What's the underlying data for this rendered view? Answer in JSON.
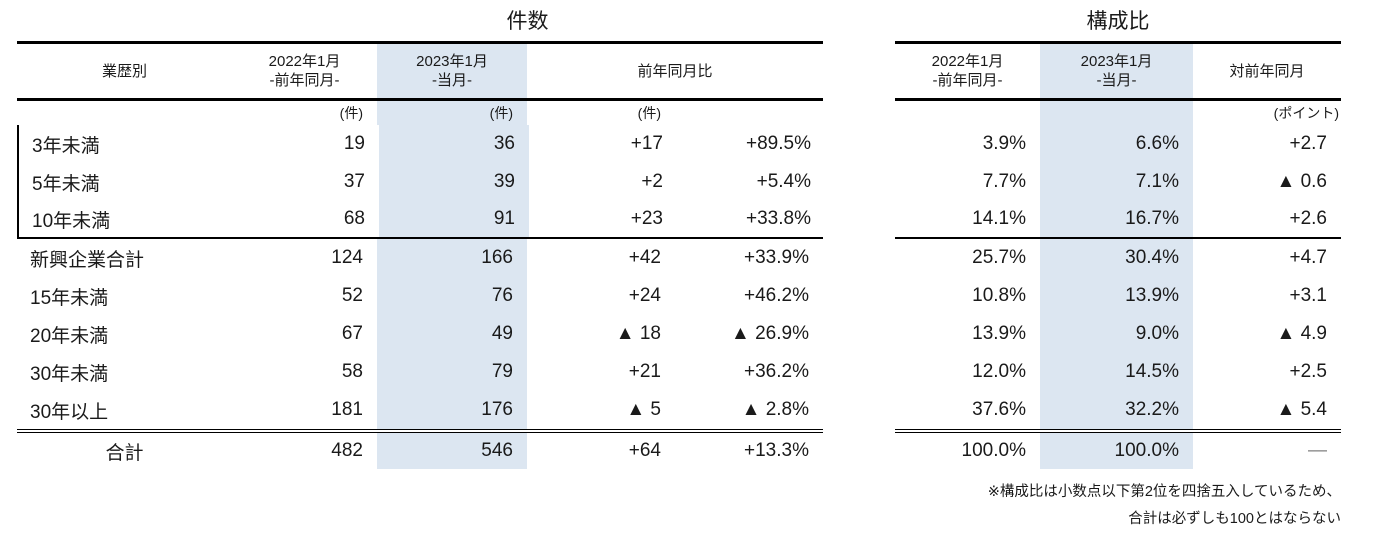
{
  "left_table": {
    "title": "件数",
    "header": {
      "col_label": "業歴別",
      "col_2022_l1": "2022年1月",
      "col_2022_l2": "-前年同月-",
      "col_2023_l1": "2023年1月",
      "col_2023_l2": "-当月-",
      "col_yoy": "前年同月比"
    },
    "units": {
      "c2022": "(件)",
      "c2023": "(件)",
      "diff": "(件)"
    },
    "rows": [
      {
        "label": "3年未満",
        "v2022": "19",
        "v2023": "36",
        "diff": "+17",
        "pct": "+89.5%"
      },
      {
        "label": "5年未満",
        "v2022": "37",
        "v2023": "39",
        "diff": "+2",
        "pct": "+5.4%"
      },
      {
        "label": "10年未満",
        "v2022": "68",
        "v2023": "91",
        "diff": "+23",
        "pct": "+33.8%"
      },
      {
        "label": "新興企業合計",
        "v2022": "124",
        "v2023": "166",
        "diff": "+42",
        "pct": "+33.9%"
      },
      {
        "label": "15年未満",
        "v2022": "52",
        "v2023": "76",
        "diff": "+24",
        "pct": "+46.2%"
      },
      {
        "label": "20年未満",
        "v2022": "67",
        "v2023": "49",
        "diff": "▲ 18",
        "pct": "▲ 26.9%"
      },
      {
        "label": "30年未満",
        "v2022": "58",
        "v2023": "79",
        "diff": "+21",
        "pct": "+36.2%"
      },
      {
        "label": "30年以上",
        "v2022": "181",
        "v2023": "176",
        "diff": "▲ 5",
        "pct": "▲ 2.8%"
      }
    ],
    "total": {
      "label": "合計",
      "v2022": "482",
      "v2023": "546",
      "diff": "+64",
      "pct": "+13.3%"
    }
  },
  "right_table": {
    "title": "構成比",
    "header": {
      "col_2022_l1": "2022年1月",
      "col_2022_l2": "-前年同月-",
      "col_2023_l1": "2023年1月",
      "col_2023_l2": "-当月-",
      "col_change": "対前年同月"
    },
    "units": {
      "change": "(ポイント)"
    },
    "rows": [
      {
        "v2022": "3.9%",
        "v2023": "6.6%",
        "change": "+2.7"
      },
      {
        "v2022": "7.7%",
        "v2023": "7.1%",
        "change": "▲ 0.6"
      },
      {
        "v2022": "14.1%",
        "v2023": "16.7%",
        "change": "+2.6"
      },
      {
        "v2022": "25.7%",
        "v2023": "30.4%",
        "change": "+4.7"
      },
      {
        "v2022": "10.8%",
        "v2023": "13.9%",
        "change": "+3.1"
      },
      {
        "v2022": "13.9%",
        "v2023": "9.0%",
        "change": "▲ 4.9"
      },
      {
        "v2022": "12.0%",
        "v2023": "14.5%",
        "change": "+2.5"
      },
      {
        "v2022": "37.6%",
        "v2023": "32.2%",
        "change": "▲ 5.4"
      }
    ],
    "total": {
      "v2022": "100.0%",
      "v2023": "100.0%",
      "change": "―"
    }
  },
  "footnote": {
    "line1": "※構成比は小数点以下第2位を四捨五入しているため、",
    "line2": "合計は必ずしも100とはならない"
  },
  "colors": {
    "highlight": "#dce6f1",
    "rule": "#000000",
    "text": "#1a1a1a",
    "dash": "#808080"
  },
  "chart_data": [
    {
      "type": "table",
      "title": "件数",
      "columns": [
        "業歴別",
        "2022年1月 -前年同月- (件)",
        "2023年1月 -当月- (件)",
        "前年同月比 (件)",
        "前年同月比 (%)"
      ],
      "rows": [
        [
          "3年未満",
          19,
          36,
          "+17",
          "+89.5%"
        ],
        [
          "5年未満",
          37,
          39,
          "+2",
          "+5.4%"
        ],
        [
          "10年未満",
          68,
          91,
          "+23",
          "+33.8%"
        ],
        [
          "新興企業合計",
          124,
          166,
          "+42",
          "+33.9%"
        ],
        [
          "15年未満",
          52,
          76,
          "+24",
          "+46.2%"
        ],
        [
          "20年未満",
          67,
          49,
          "▲ 18",
          "▲ 26.9%"
        ],
        [
          "30年未満",
          58,
          79,
          "+21",
          "+36.2%"
        ],
        [
          "30年以上",
          181,
          176,
          "▲ 5",
          "▲ 2.8%"
        ],
        [
          "合計",
          482,
          546,
          "+64",
          "+13.3%"
        ]
      ]
    },
    {
      "type": "table",
      "title": "構成比",
      "columns": [
        "業歴別",
        "2022年1月 -前年同月-",
        "2023年1月 -当月-",
        "対前年同月 (ポイント)"
      ],
      "rows": [
        [
          "3年未満",
          "3.9%",
          "6.6%",
          "+2.7"
        ],
        [
          "5年未満",
          "7.7%",
          "7.1%",
          "▲ 0.6"
        ],
        [
          "10年未満",
          "14.1%",
          "16.7%",
          "+2.6"
        ],
        [
          "新興企業合計",
          "25.7%",
          "30.4%",
          "+4.7"
        ],
        [
          "15年未満",
          "10.8%",
          "13.9%",
          "+3.1"
        ],
        [
          "20年未満",
          "13.9%",
          "9.0%",
          "▲ 4.9"
        ],
        [
          "30年未満",
          "12.0%",
          "14.5%",
          "+2.5"
        ],
        [
          "30年以上",
          "37.6%",
          "32.2%",
          "▲ 5.4"
        ],
        [
          "合計",
          "100.0%",
          "100.0%",
          "―"
        ]
      ]
    }
  ]
}
